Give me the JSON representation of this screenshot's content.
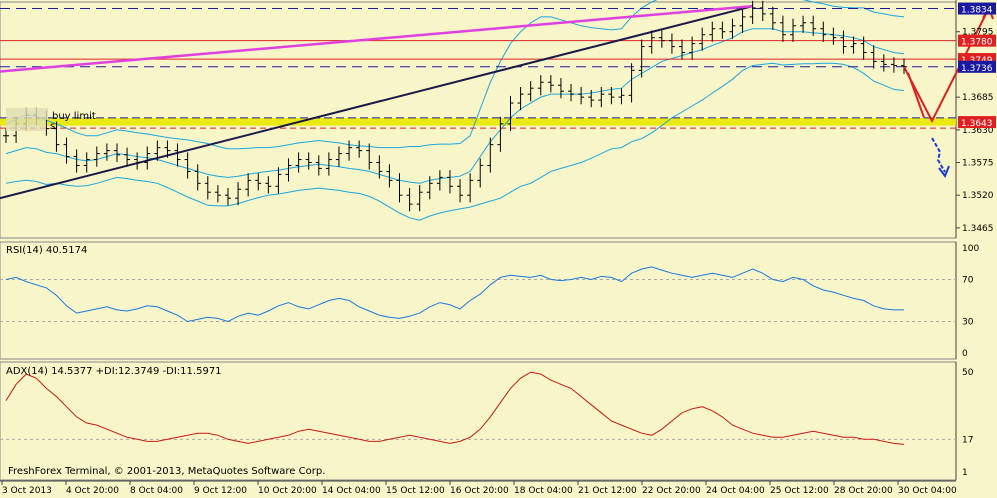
{
  "chart_data": [
    {
      "type": "candlestick",
      "panel": "price",
      "colors": {
        "background": "#f8f5c8",
        "candle": "#000000",
        "bands": "#1aa7e0",
        "trendline": "#1a1a4a",
        "channel_top": "#e040e0",
        "yellow_zone": "#e8e800",
        "arrows_red": "#e02020",
        "arrow_blue": "#1a3adc"
      },
      "y_ticks": [
        "1.3795",
        "1.3685",
        "1.3630",
        "1.3575",
        "1.3520",
        "1.3465"
      ],
      "ylim": [
        1.3448,
        1.3845
      ],
      "price_tags": [
        {
          "label": "1.3834",
          "value": 1.3834,
          "color": "#1a1aa0",
          "style": "dashed"
        },
        {
          "label": "1.3780",
          "value": 1.378,
          "color": "#e02020",
          "style": "solid"
        },
        {
          "label": "1.3749",
          "value": 1.3749,
          "color": "#e02020",
          "style": "solid"
        },
        {
          "label": "1.3736",
          "value": 1.3736,
          "color": "#1a1aa0",
          "style": "dashed"
        },
        {
          "label": "1.3643",
          "value": 1.3643,
          "color": "#e02020",
          "style": "yellow"
        }
      ],
      "annotations": {
        "order_label": "buy limit",
        "order_sub": "sl"
      },
      "close": [
        1.362,
        1.364,
        1.3655,
        1.365,
        1.3632,
        1.3605,
        1.3585,
        1.357,
        1.358,
        1.359,
        1.3595,
        1.3588,
        1.358,
        1.3575,
        1.359,
        1.36,
        1.3595,
        1.358,
        1.356,
        1.354,
        1.3525,
        1.352,
        1.3515,
        1.353,
        1.3545,
        1.354,
        1.3535,
        1.3555,
        1.357,
        1.358,
        1.3575,
        1.3565,
        1.358,
        1.359,
        1.36,
        1.3595,
        1.3575,
        1.356,
        1.3545,
        1.352,
        1.3505,
        1.3525,
        1.354,
        1.355,
        1.3535,
        1.352,
        1.3545,
        1.357,
        1.3605,
        1.364,
        1.3675,
        1.369,
        1.37,
        1.371,
        1.3705,
        1.3695,
        1.369,
        1.3685,
        1.368,
        1.369,
        1.3685,
        1.3688,
        1.373,
        1.377,
        1.3785,
        1.378,
        1.377,
        1.376,
        1.3775,
        1.379,
        1.38,
        1.3795,
        1.3805,
        1.382,
        1.3835,
        1.3825,
        1.381,
        1.379,
        1.3805,
        1.381,
        1.38,
        1.379,
        1.3785,
        1.377,
        1.3775,
        1.376,
        1.3745,
        1.374,
        1.3738,
        1.3736
      ],
      "band_mid": [
        1.359,
        1.3595,
        1.36,
        1.3598,
        1.3592,
        1.359,
        1.3585,
        1.358,
        1.3578,
        1.358,
        1.3585,
        1.359,
        1.3588,
        1.3585,
        1.3583,
        1.358,
        1.3575,
        1.357,
        1.3565,
        1.356,
        1.3555,
        1.3552,
        1.355,
        1.3552,
        1.3555,
        1.3558,
        1.356,
        1.3562,
        1.3565,
        1.3568,
        1.357,
        1.3572,
        1.357,
        1.3568,
        1.3565,
        1.3563,
        1.356,
        1.3555,
        1.355,
        1.3545,
        1.3542,
        1.354,
        1.3545,
        1.3548,
        1.355,
        1.3552,
        1.356,
        1.3585,
        1.361,
        1.363,
        1.365,
        1.3665,
        1.3675,
        1.3685,
        1.369,
        1.369,
        1.369,
        1.369,
        1.3692,
        1.3695,
        1.3698,
        1.37,
        1.3715,
        1.3725,
        1.3735,
        1.3745,
        1.375,
        1.3755,
        1.376,
        1.3765,
        1.3772,
        1.3778,
        1.3785,
        1.3795,
        1.38,
        1.38,
        1.38,
        1.3795,
        1.3795,
        1.3795,
        1.3793,
        1.3792,
        1.379,
        1.3788,
        1.3785,
        1.378,
        1.377,
        1.3765,
        1.376,
        1.3758
      ],
      "band_width": [
        0.005,
        0.0052,
        0.0055,
        0.0055,
        0.0054,
        0.005,
        0.0048,
        0.0045,
        0.0042,
        0.004,
        0.004,
        0.004,
        0.004,
        0.004,
        0.004,
        0.004,
        0.0042,
        0.0045,
        0.0048,
        0.005,
        0.0052,
        0.005,
        0.0048,
        0.0046,
        0.0044,
        0.0042,
        0.004,
        0.004,
        0.004,
        0.004,
        0.004,
        0.004,
        0.004,
        0.004,
        0.004,
        0.004,
        0.0042,
        0.0045,
        0.005,
        0.0055,
        0.006,
        0.0062,
        0.006,
        0.0058,
        0.0056,
        0.0055,
        0.006,
        0.008,
        0.01,
        0.0115,
        0.0125,
        0.013,
        0.0135,
        0.0135,
        0.013,
        0.0125,
        0.012,
        0.0115,
        0.011,
        0.0105,
        0.01,
        0.01,
        0.0105,
        0.011,
        0.011,
        0.0108,
        0.01,
        0.0095,
        0.009,
        0.0085,
        0.008,
        0.0075,
        0.007,
        0.0065,
        0.0062,
        0.006,
        0.0058,
        0.0056,
        0.0055,
        0.0054,
        0.0052,
        0.005,
        0.0048,
        0.0048,
        0.005,
        0.0055,
        0.0058,
        0.006,
        0.0062,
        0.0062
      ]
    },
    {
      "type": "line",
      "panel": "rsi",
      "title": "RSI(14) 40.5174",
      "y_ticks": [
        "100",
        "70",
        "30",
        "0"
      ],
      "ylim": [
        0,
        100
      ],
      "levels": [
        70,
        30
      ],
      "color": "#1a78e0",
      "values": [
        70,
        72,
        68,
        65,
        62,
        55,
        45,
        38,
        40,
        42,
        44,
        41,
        40,
        42,
        45,
        44,
        40,
        36,
        30,
        32,
        34,
        33,
        30,
        35,
        38,
        36,
        40,
        45,
        48,
        44,
        42,
        46,
        50,
        52,
        50,
        44,
        40,
        36,
        34,
        33,
        35,
        38,
        44,
        48,
        46,
        42,
        50,
        56,
        65,
        72,
        74,
        73,
        72,
        74,
        70,
        69,
        70,
        72,
        70,
        73,
        72,
        68,
        76,
        80,
        82,
        79,
        76,
        74,
        72,
        74,
        76,
        74,
        72,
        76,
        80,
        76,
        70,
        68,
        72,
        70,
        64,
        60,
        58,
        55,
        52,
        50,
        45,
        42,
        41,
        41
      ]
    },
    {
      "type": "line",
      "panel": "adx",
      "title": "ADX(14) 14.5377 +DI:12.3749 -DI:11.5971",
      "y_ticks": [
        "50",
        "17",
        "1"
      ],
      "ylim": [
        0,
        52
      ],
      "levels": [
        17
      ],
      "color": "#c81a1a",
      "values": [
        36,
        44,
        49,
        47,
        42,
        38,
        33,
        28,
        25,
        24,
        22,
        20,
        18,
        17,
        16,
        16,
        17,
        18,
        19,
        20,
        20,
        19,
        17,
        16,
        15,
        16,
        17,
        18,
        19,
        21,
        22,
        21,
        20,
        19,
        18,
        17,
        16,
        16,
        17,
        18,
        19,
        18,
        17,
        16,
        15,
        16,
        18,
        22,
        28,
        35,
        42,
        47,
        50,
        49,
        46,
        44,
        42,
        38,
        34,
        30,
        26,
        24,
        22,
        20,
        19,
        22,
        26,
        30,
        32,
        33,
        31,
        28,
        24,
        22,
        20,
        19,
        18,
        18,
        19,
        20,
        21,
        20,
        19,
        18,
        18,
        17,
        17,
        16,
        15,
        14.5
      ]
    }
  ],
  "x_axis": {
    "labels": [
      "3 Oct 2013",
      "4 Oct 20:00",
      "8 Oct 04:00",
      "9 Oct 12:00",
      "10 Oct 20:00",
      "14 Oct 04:00",
      "15 Oct 12:00",
      "16 Oct 20:00",
      "18 Oct 04:00",
      "21 Oct 12:00",
      "22 Oct 20:00",
      "24 Oct 04:00",
      "25 Oct 12:00",
      "28 Oct 20:00",
      "30 Oct 04:00"
    ]
  },
  "footer": {
    "copyright": "FreshForex Terminal, © 2001-2013, MetaQuotes Software Corp."
  }
}
